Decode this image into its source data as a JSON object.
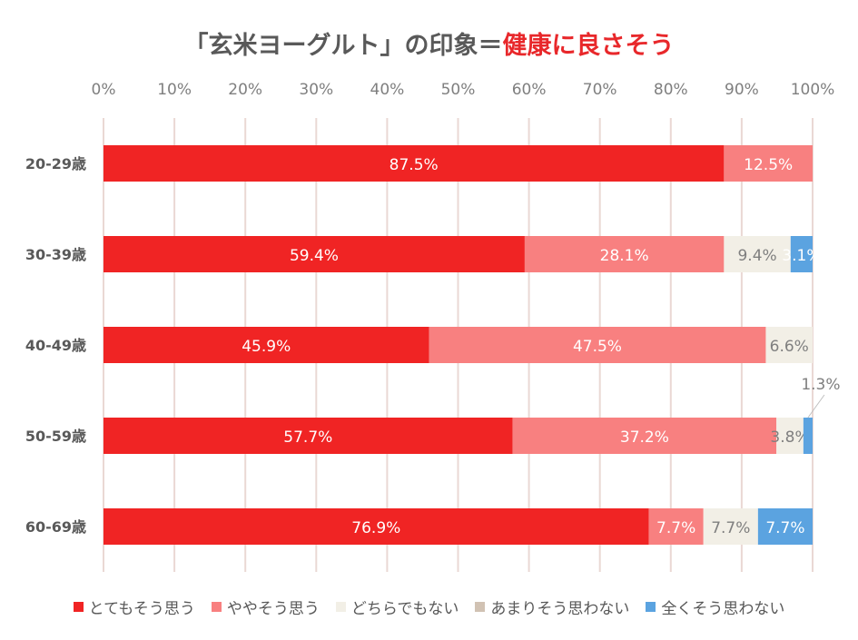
{
  "title_part1": "「玄米ヨーグルト」の印象＝",
  "title_part2": "健康に良さそう",
  "chart_data": {
    "type": "bar",
    "orientation": "horizontal-stacked-100",
    "xlim": [
      0,
      100
    ],
    "ticks": [
      "0%",
      "10%",
      "20%",
      "30%",
      "40%",
      "50%",
      "60%",
      "70%",
      "80%",
      "90%",
      "100%"
    ],
    "categories": [
      "20-29歳",
      "30-39歳",
      "40-49歳",
      "50-59歳",
      "60-69歳"
    ],
    "series": [
      {
        "name": "とてもそう思う",
        "color": "#f02424",
        "values": [
          87.5,
          59.4,
          45.9,
          57.7,
          76.9
        ],
        "labels": [
          "87.5%",
          "59.4%",
          "45.9%",
          "57.7%",
          "76.9%"
        ]
      },
      {
        "name": "ややそう思う",
        "color": "#f88080",
        "values": [
          12.5,
          28.1,
          47.5,
          37.2,
          7.7
        ],
        "labels": [
          "12.5%",
          "28.1%",
          "47.5%",
          "37.2%",
          "7.7%"
        ]
      },
      {
        "name": "どちらでもない",
        "color": "#f2efe6",
        "values": [
          0,
          9.4,
          6.6,
          3.8,
          7.7
        ],
        "labels": [
          "",
          "9.4%",
          "6.6%",
          "3.8%",
          "7.7%"
        ]
      },
      {
        "name": "あまりそう思わない",
        "color": "#d1c2b3",
        "values": [
          0,
          0,
          0,
          0,
          0
        ],
        "labels": [
          "",
          "",
          "",
          "",
          ""
        ]
      },
      {
        "name": "全くそう思わない",
        "color": "#5ba3e0",
        "values": [
          0,
          3.1,
          0,
          1.3,
          7.7
        ],
        "labels": [
          "",
          "3.1%",
          "",
          "1.3%",
          "7.7%"
        ]
      }
    ]
  }
}
